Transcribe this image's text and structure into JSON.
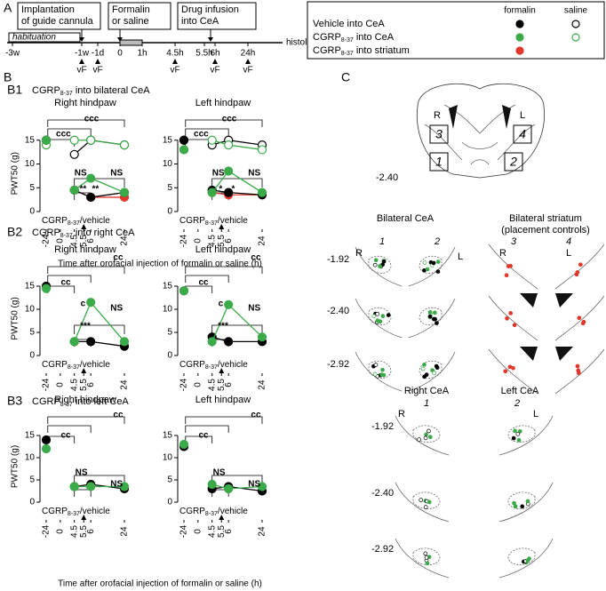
{
  "panel_a": {
    "label": "A",
    "boxes": [
      [
        "Implantation",
        "of guide cannula"
      ],
      [
        "Formalin",
        "or saline"
      ],
      [
        "Drug infusion",
        "into CeA"
      ]
    ],
    "habituation": "habituation",
    "times": [
      "-3w",
      "-1w",
      "-1d",
      "0",
      "1h",
      "4.5h",
      "5.5h",
      "6h",
      "24h"
    ],
    "end": "histology",
    "vf": [
      "vF",
      "vF",
      "vF",
      "vF",
      "vF"
    ]
  },
  "legend": {
    "headers": [
      "formalin",
      "saline"
    ],
    "rows": [
      {
        "main": "Vehicle into CeA"
      },
      {
        "main": "CGRP",
        "sub": "8-37",
        "rest": " into CeA"
      },
      {
        "main": "CGRP",
        "sub": "8-37",
        "rest": " into striatum"
      }
    ]
  },
  "panel_b": {
    "label": "B",
    "rows": [
      {
        "label": "B1",
        "title": {
          "main": "CGRP",
          "sub": "8-37",
          "rest": " into bilateral CeA"
        },
        "xlabel": "Time after orofacial injection of formalin or saline (h)"
      },
      {
        "label": "B2",
        "title": {
          "main": "CGRP",
          "sub": "8-37",
          "rest": " into right CeA"
        }
      },
      {
        "label": "B3",
        "title": {
          "main": "CGRP",
          "sub": "8-37",
          "rest": " into left CeA"
        },
        "xlabel": "Time after orofacial injection of formalin or saline (h)"
      }
    ]
  },
  "chart_data": [
    {
      "type": "line",
      "title": "Right hindpaw",
      "ylabel": "PWT50 (g)",
      "x": [
        -24,
        0,
        4.5,
        6,
        24
      ],
      "xticks": [
        -24,
        0,
        4.5,
        5.5,
        6,
        24
      ],
      "ylim": [
        0,
        20
      ],
      "yticks": [
        0,
        5,
        10,
        15
      ],
      "infusion": {
        "main": "CGRP",
        "sub": "8-37",
        "rest": "/vehicle"
      },
      "series": [
        {
          "color": "#000000",
          "marker": "open",
          "values": [
            15,
            null,
            12,
            15,
            14
          ]
        },
        {
          "color": "#3bab49",
          "marker": "open",
          "values": [
            14,
            null,
            15,
            15,
            14
          ]
        },
        {
          "color": "#e2372b",
          "marker": "filled",
          "values": [
            null,
            null,
            4.5,
            3,
            3
          ]
        },
        {
          "color": "#000000",
          "marker": "filled",
          "values": [
            15,
            null,
            4.5,
            3,
            4
          ]
        },
        {
          "color": "#3bab49",
          "marker": "filled",
          "values": [
            15,
            null,
            4.5,
            7,
            4
          ]
        }
      ],
      "annotations": [
        {
          "text": "ccc",
          "color": "#3bab49"
        },
        {
          "text": "ccc",
          "color": "#3bab49"
        },
        {
          "text": "NS",
          "color": "#000000"
        },
        {
          "text": "NS",
          "color": "#000000"
        },
        {
          "text": "**",
          "color": "#000000"
        },
        {
          "text": "**",
          "color": "#e8691e"
        }
      ]
    },
    {
      "type": "line",
      "title": "Left hindpaw",
      "x": [
        -24,
        0,
        4.5,
        6,
        24
      ],
      "xticks": [
        -24,
        0,
        4.5,
        5.5,
        6,
        24
      ],
      "ylim": [
        0,
        20
      ],
      "yticks": [
        0,
        5,
        10,
        15
      ],
      "infusion": {
        "main": "CGRP",
        "sub": "8-37",
        "rest": "/vehicle"
      },
      "series": [
        {
          "color": "#000000",
          "marker": "open",
          "values": [
            15,
            null,
            14,
            15,
            14
          ]
        },
        {
          "color": "#3bab49",
          "marker": "open",
          "values": [
            13,
            null,
            15,
            14,
            13
          ]
        },
        {
          "color": "#e2372b",
          "marker": "filled",
          "values": [
            null,
            null,
            4,
            3.5,
            3.5
          ]
        },
        {
          "color": "#000000",
          "marker": "filled",
          "values": [
            15,
            null,
            4.5,
            4,
            3.5
          ]
        },
        {
          "color": "#3bab49",
          "marker": "filled",
          "values": [
            13,
            null,
            4,
            8.5,
            4
          ]
        }
      ],
      "annotations": [
        {
          "text": "ccc",
          "color": "#3bab49"
        },
        {
          "text": "ccc",
          "color": "#3bab49"
        },
        {
          "text": "NS",
          "color": "#000000"
        },
        {
          "text": "NS",
          "color": "#000000"
        },
        {
          "text": "*",
          "color": "#000000"
        },
        {
          "text": "*",
          "color": "#e8691e"
        }
      ]
    },
    {
      "type": "line",
      "title": "Right hindpaw",
      "ylabel": "PWT50 (g)",
      "x": [
        -24,
        0,
        4.5,
        6,
        24
      ],
      "xticks": [
        -24,
        0,
        4.5,
        5.5,
        6,
        24
      ],
      "ylim": [
        0,
        20
      ],
      "yticks": [
        0,
        5,
        10,
        15
      ],
      "infusion": {
        "main": "CGRP",
        "sub": "8-37",
        "rest": "/vehicle"
      },
      "series": [
        {
          "color": "#000000",
          "marker": "filled",
          "values": [
            15,
            null,
            3,
            3,
            2
          ]
        },
        {
          "color": "#3bab49",
          "marker": "filled",
          "values": [
            14.5,
            null,
            3,
            11.5,
            3
          ]
        }
      ],
      "annotations": [
        {
          "text": "cc",
          "color": "#3bab49"
        },
        {
          "text": "cc",
          "color": "#3bab49"
        },
        {
          "text": "c",
          "color": "#000000"
        },
        {
          "text": "NS",
          "color": "#000000"
        },
        {
          "text": "***",
          "color": "#000000"
        }
      ]
    },
    {
      "type": "line",
      "title": "Left hindpaw",
      "x": [
        -24,
        0,
        4.5,
        6,
        24
      ],
      "xticks": [
        -24,
        0,
        4.5,
        5.5,
        6,
        24
      ],
      "ylim": [
        0,
        20
      ],
      "yticks": [
        0,
        5,
        10,
        15
      ],
      "infusion": {
        "main": "CGRP",
        "sub": "8-37",
        "rest": "/vehicle"
      },
      "series": [
        {
          "color": "#000000",
          "marker": "filled",
          "values": [
            14,
            null,
            4,
            3,
            3
          ]
        },
        {
          "color": "#3bab49",
          "marker": "filled",
          "values": [
            14,
            null,
            3,
            11,
            4
          ]
        }
      ],
      "annotations": [
        {
          "text": "cc",
          "color": "#3bab49"
        },
        {
          "text": "cc",
          "color": "#3bab49"
        },
        {
          "text": "c",
          "color": "#000000"
        },
        {
          "text": "NS",
          "color": "#000000"
        },
        {
          "text": "***",
          "color": "#000000"
        }
      ]
    },
    {
      "type": "line",
      "title": "Right hindpaw",
      "ylabel": "PWT50 (g)",
      "x": [
        -24,
        0,
        4.5,
        6,
        24
      ],
      "xticks": [
        -24,
        0,
        4.5,
        5.5,
        6,
        24
      ],
      "ylim": [
        0,
        20
      ],
      "yticks": [
        0,
        5,
        10,
        15
      ],
      "infusion": {
        "main": "CGRP",
        "sub": "8-37",
        "rest": "/vehicle"
      },
      "series": [
        {
          "color": "#000000",
          "marker": "filled",
          "values": [
            14,
            null,
            3.5,
            4,
            3
          ]
        },
        {
          "color": "#3bab49",
          "marker": "filled",
          "values": [
            12,
            null,
            3.5,
            3.5,
            3.5
          ]
        }
      ],
      "annotations": [
        {
          "text": "cc",
          "color": "#3bab49"
        },
        {
          "text": "cc",
          "color": "#3bab49"
        },
        {
          "text": "NS",
          "color": "#000000"
        },
        {
          "text": "NS",
          "color": "#000000"
        }
      ]
    },
    {
      "type": "line",
      "title": "Left hindpaw",
      "x": [
        -24,
        0,
        4.5,
        6,
        24
      ],
      "xticks": [
        -24,
        0,
        4.5,
        5.5,
        6,
        24
      ],
      "ylim": [
        0,
        20
      ],
      "yticks": [
        0,
        5,
        10,
        15
      ],
      "infusion": {
        "main": "CGRP",
        "sub": "8-37",
        "rest": "/vehicle"
      },
      "series": [
        {
          "color": "#000000",
          "marker": "filled",
          "values": [
            12.5,
            null,
            3,
            3.5,
            2.5
          ]
        },
        {
          "color": "#3bab49",
          "marker": "filled",
          "values": [
            13,
            null,
            4,
            3,
            3.5
          ]
        }
      ],
      "annotations": [
        {
          "text": "cc",
          "color": "#3bab49"
        },
        {
          "text": "cc",
          "color": "#3bab49"
        },
        {
          "text": "NS",
          "color": "#000000"
        },
        {
          "text": "NS",
          "color": "#000000"
        }
      ]
    }
  ],
  "panel_c": {
    "label": "C",
    "overview": {
      "sides": [
        "R",
        "L"
      ],
      "boxes": [
        "3",
        "4",
        "1",
        "2"
      ],
      "level": "-2.40"
    },
    "bilateral": {
      "titles": [
        "Bilateral CeA",
        "Bilateral striatum",
        "(placement controls)"
      ],
      "columns": [
        "1",
        "2",
        "3",
        "4"
      ],
      "sides": [
        "R",
        "L",
        "R",
        "L"
      ],
      "levels": [
        "-1.92",
        "-2.40",
        "-2.92"
      ]
    },
    "unilateral": {
      "titles": [
        "Right CeA",
        "Left CeA"
      ],
      "columns": [
        "1",
        "2"
      ],
      "sides": [
        "R",
        "L"
      ],
      "levels": [
        "-1.92",
        "-2.40",
        "-2.92"
      ]
    }
  }
}
